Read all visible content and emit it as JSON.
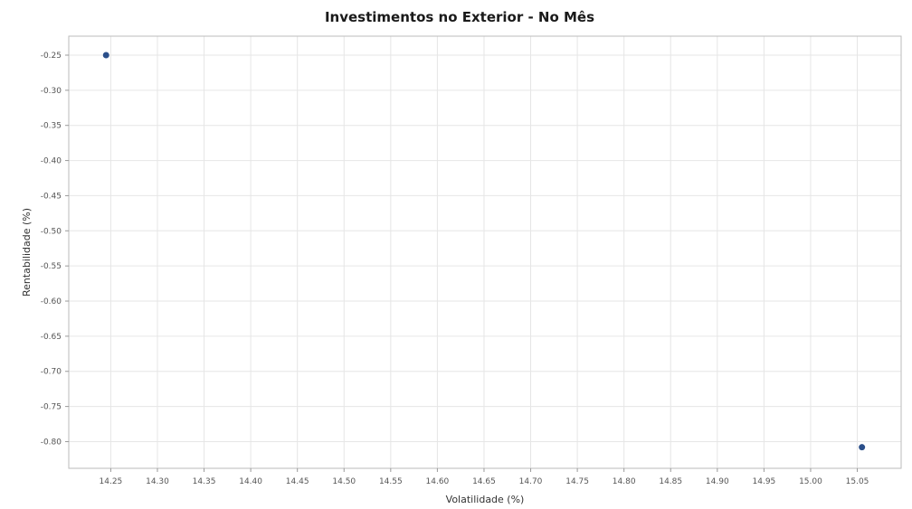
{
  "chart_data": {
    "type": "scatter",
    "title": "Investimentos no Exterior - No Mês",
    "xlabel": "Volatilidade (%)",
    "ylabel": "Rentabilidade (%)",
    "xlim": [
      14.205,
      15.097
    ],
    "ylim": [
      -0.838,
      -0.223
    ],
    "xticks": [
      14.25,
      14.3,
      14.35,
      14.4,
      14.45,
      14.5,
      14.55,
      14.6,
      14.65,
      14.7,
      14.75,
      14.8,
      14.85,
      14.9,
      14.95,
      15.0,
      15.05
    ],
    "xtick_labels": [
      "14.25",
      "14.30",
      "14.35",
      "14.40",
      "14.45",
      "14.50",
      "14.55",
      "14.60",
      "14.65",
      "14.70",
      "14.75",
      "14.80",
      "14.85",
      "14.90",
      "14.95",
      "15.00",
      "15.05"
    ],
    "yticks": [
      -0.25,
      -0.3,
      -0.35,
      -0.4,
      -0.45,
      -0.5,
      -0.55,
      -0.6,
      -0.65,
      -0.7,
      -0.75,
      -0.8
    ],
    "ytick_labels": [
      "-0.25",
      "-0.30",
      "-0.35",
      "-0.40",
      "-0.45",
      "-0.50",
      "-0.55",
      "-0.60",
      "-0.65",
      "-0.70",
      "-0.75",
      "-0.80"
    ],
    "grid": true,
    "legend": "none",
    "series": [
      {
        "color": "#2b4f8a",
        "points": [
          {
            "x": 14.245,
            "y": -0.25
          },
          {
            "x": 15.055,
            "y": -0.808
          }
        ]
      }
    ]
  }
}
